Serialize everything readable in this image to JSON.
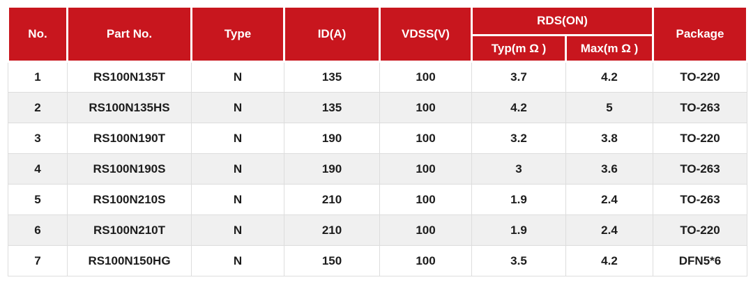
{
  "chart_data": {
    "type": "table",
    "group_header": "RDS(ON)",
    "headers": [
      "No.",
      "Part No.",
      "Type",
      "ID(A)",
      "VDSS(V)",
      "Typ(m Ω )",
      "Max(m Ω )",
      "Package"
    ],
    "rows": [
      [
        "1",
        "RS100N135T",
        "N",
        "135",
        "100",
        "3.7",
        "4.2",
        "TO-220"
      ],
      [
        "2",
        "RS100N135HS",
        "N",
        "135",
        "100",
        "4.2",
        "5",
        "TO-263"
      ],
      [
        "3",
        "RS100N190T",
        "N",
        "190",
        "100",
        "3.2",
        "3.8",
        "TO-220"
      ],
      [
        "4",
        "RS100N190S",
        "N",
        "190",
        "100",
        "3",
        "3.6",
        "TO-263"
      ],
      [
        "5",
        "RS100N210S",
        "N",
        "210",
        "100",
        "1.9",
        "2.4",
        "TO-263"
      ],
      [
        "6",
        "RS100N210T",
        "N",
        "210",
        "100",
        "1.9",
        "2.4",
        "TO-220"
      ],
      [
        "7",
        "RS100N150HG",
        "N",
        "150",
        "100",
        "3.5",
        "4.2",
        "DFN5*6"
      ]
    ]
  },
  "colors": {
    "header_bg": "#C8161E",
    "header_text": "#FFFFFF",
    "row_alt_bg": "#F0F0F0",
    "border": "#DDDDDD",
    "text": "#1C1C1C"
  }
}
